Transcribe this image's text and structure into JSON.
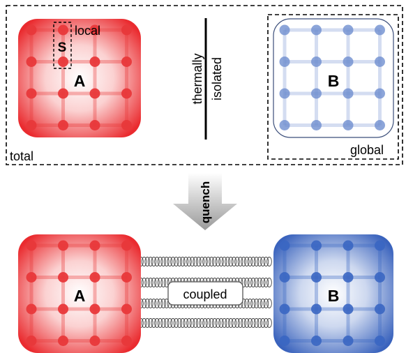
{
  "top_panel": {
    "corner_label": "total",
    "separator_label_line1": "thermally",
    "separator_label_line2": "isolated",
    "system_a": {
      "label": "A",
      "subsystem_label": "S",
      "subsystem_caption": "local",
      "color": "#e8383a"
    },
    "system_b": {
      "label": "B",
      "caption": "global",
      "color": "#6f8fd0"
    }
  },
  "arrow": {
    "label": "quench",
    "color": "#a6a6a6"
  },
  "bottom_panel": {
    "system_a": {
      "label": "A",
      "color": "#e8383a"
    },
    "system_b": {
      "label": "B",
      "color": "#3a66c2"
    },
    "coupling_label": "coupled"
  }
}
